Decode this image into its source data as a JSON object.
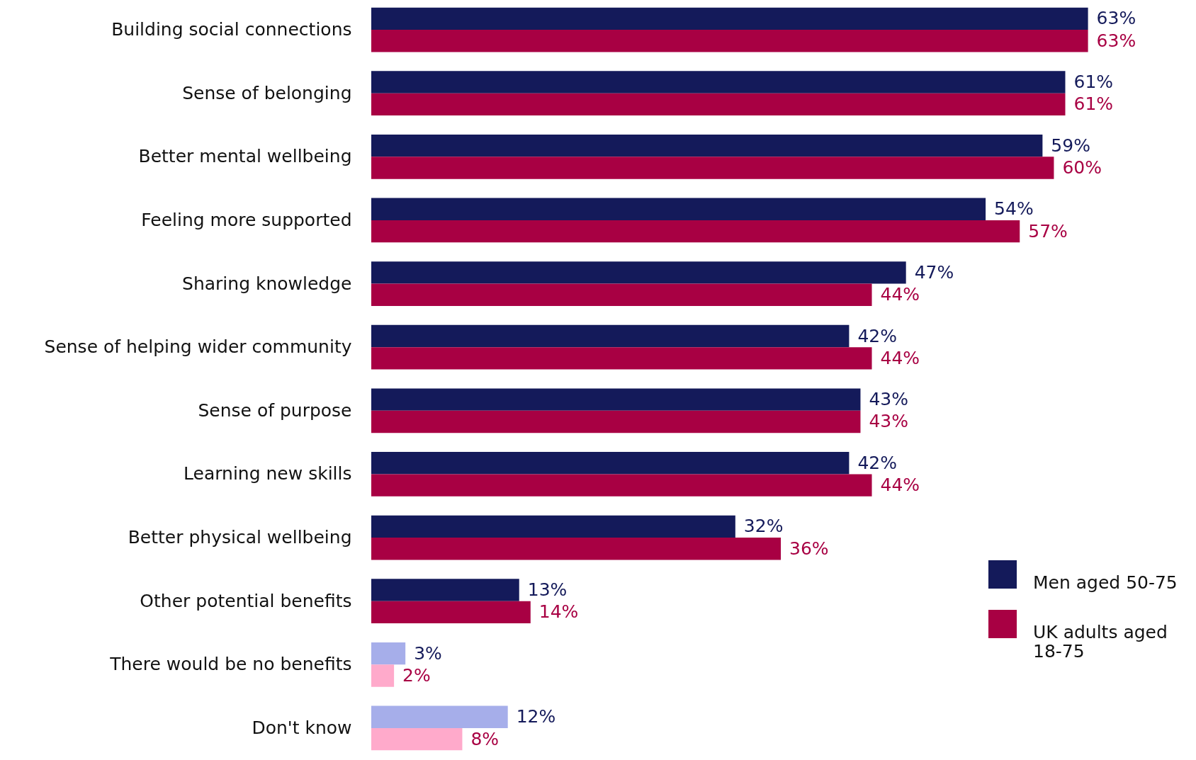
{
  "chart_data": {
    "type": "bar",
    "orientation": "horizontal",
    "legend": "bottom right",
    "data_labels": true,
    "categories": [
      "Building social connections",
      "Sense of belonging",
      "Better mental wellbeing",
      "Feeling more supported",
      "Sharing knowledge",
      "Sense of helping wider community",
      "Sense of purpose",
      "Learning new skills",
      "Better physical wellbeing",
      "Other potential benefits",
      "There would be no benefits",
      "Don't know"
    ],
    "series": [
      {
        "name": "Men aged 50-75",
        "color": "#141a5a",
        "colors": [
          "#141a5a",
          "#141a5a",
          "#141a5a",
          "#141a5a",
          "#141a5a",
          "#141a5a",
          "#141a5a",
          "#141a5a",
          "#141a5a",
          "#141a5a",
          "#a6aeea",
          "#a6aeea"
        ],
        "values": [
          63,
          61,
          59,
          54,
          47,
          42,
          43,
          42,
          32,
          13,
          3,
          12
        ],
        "value_labels": [
          "63%",
          "61%",
          "59%",
          "54%",
          "47%",
          "42%",
          "43%",
          "42%",
          "32%",
          "13%",
          "3%",
          "12%"
        ]
      },
      {
        "name": "UK adults aged 18-75",
        "color": "#a80043",
        "colors": [
          "#a80043",
          "#a80043",
          "#a80043",
          "#a80043",
          "#a80043",
          "#a80043",
          "#a80043",
          "#a80043",
          "#a80043",
          "#a80043",
          "#ffaacb",
          "#ffaacb"
        ],
        "values": [
          63,
          61,
          60,
          57,
          44,
          44,
          43,
          44,
          36,
          14,
          2,
          8
        ],
        "value_labels": [
          "63%",
          "61%",
          "60%",
          "57%",
          "44%",
          "44%",
          "43%",
          "44%",
          "36%",
          "14%",
          "2%",
          "8%"
        ]
      }
    ]
  }
}
